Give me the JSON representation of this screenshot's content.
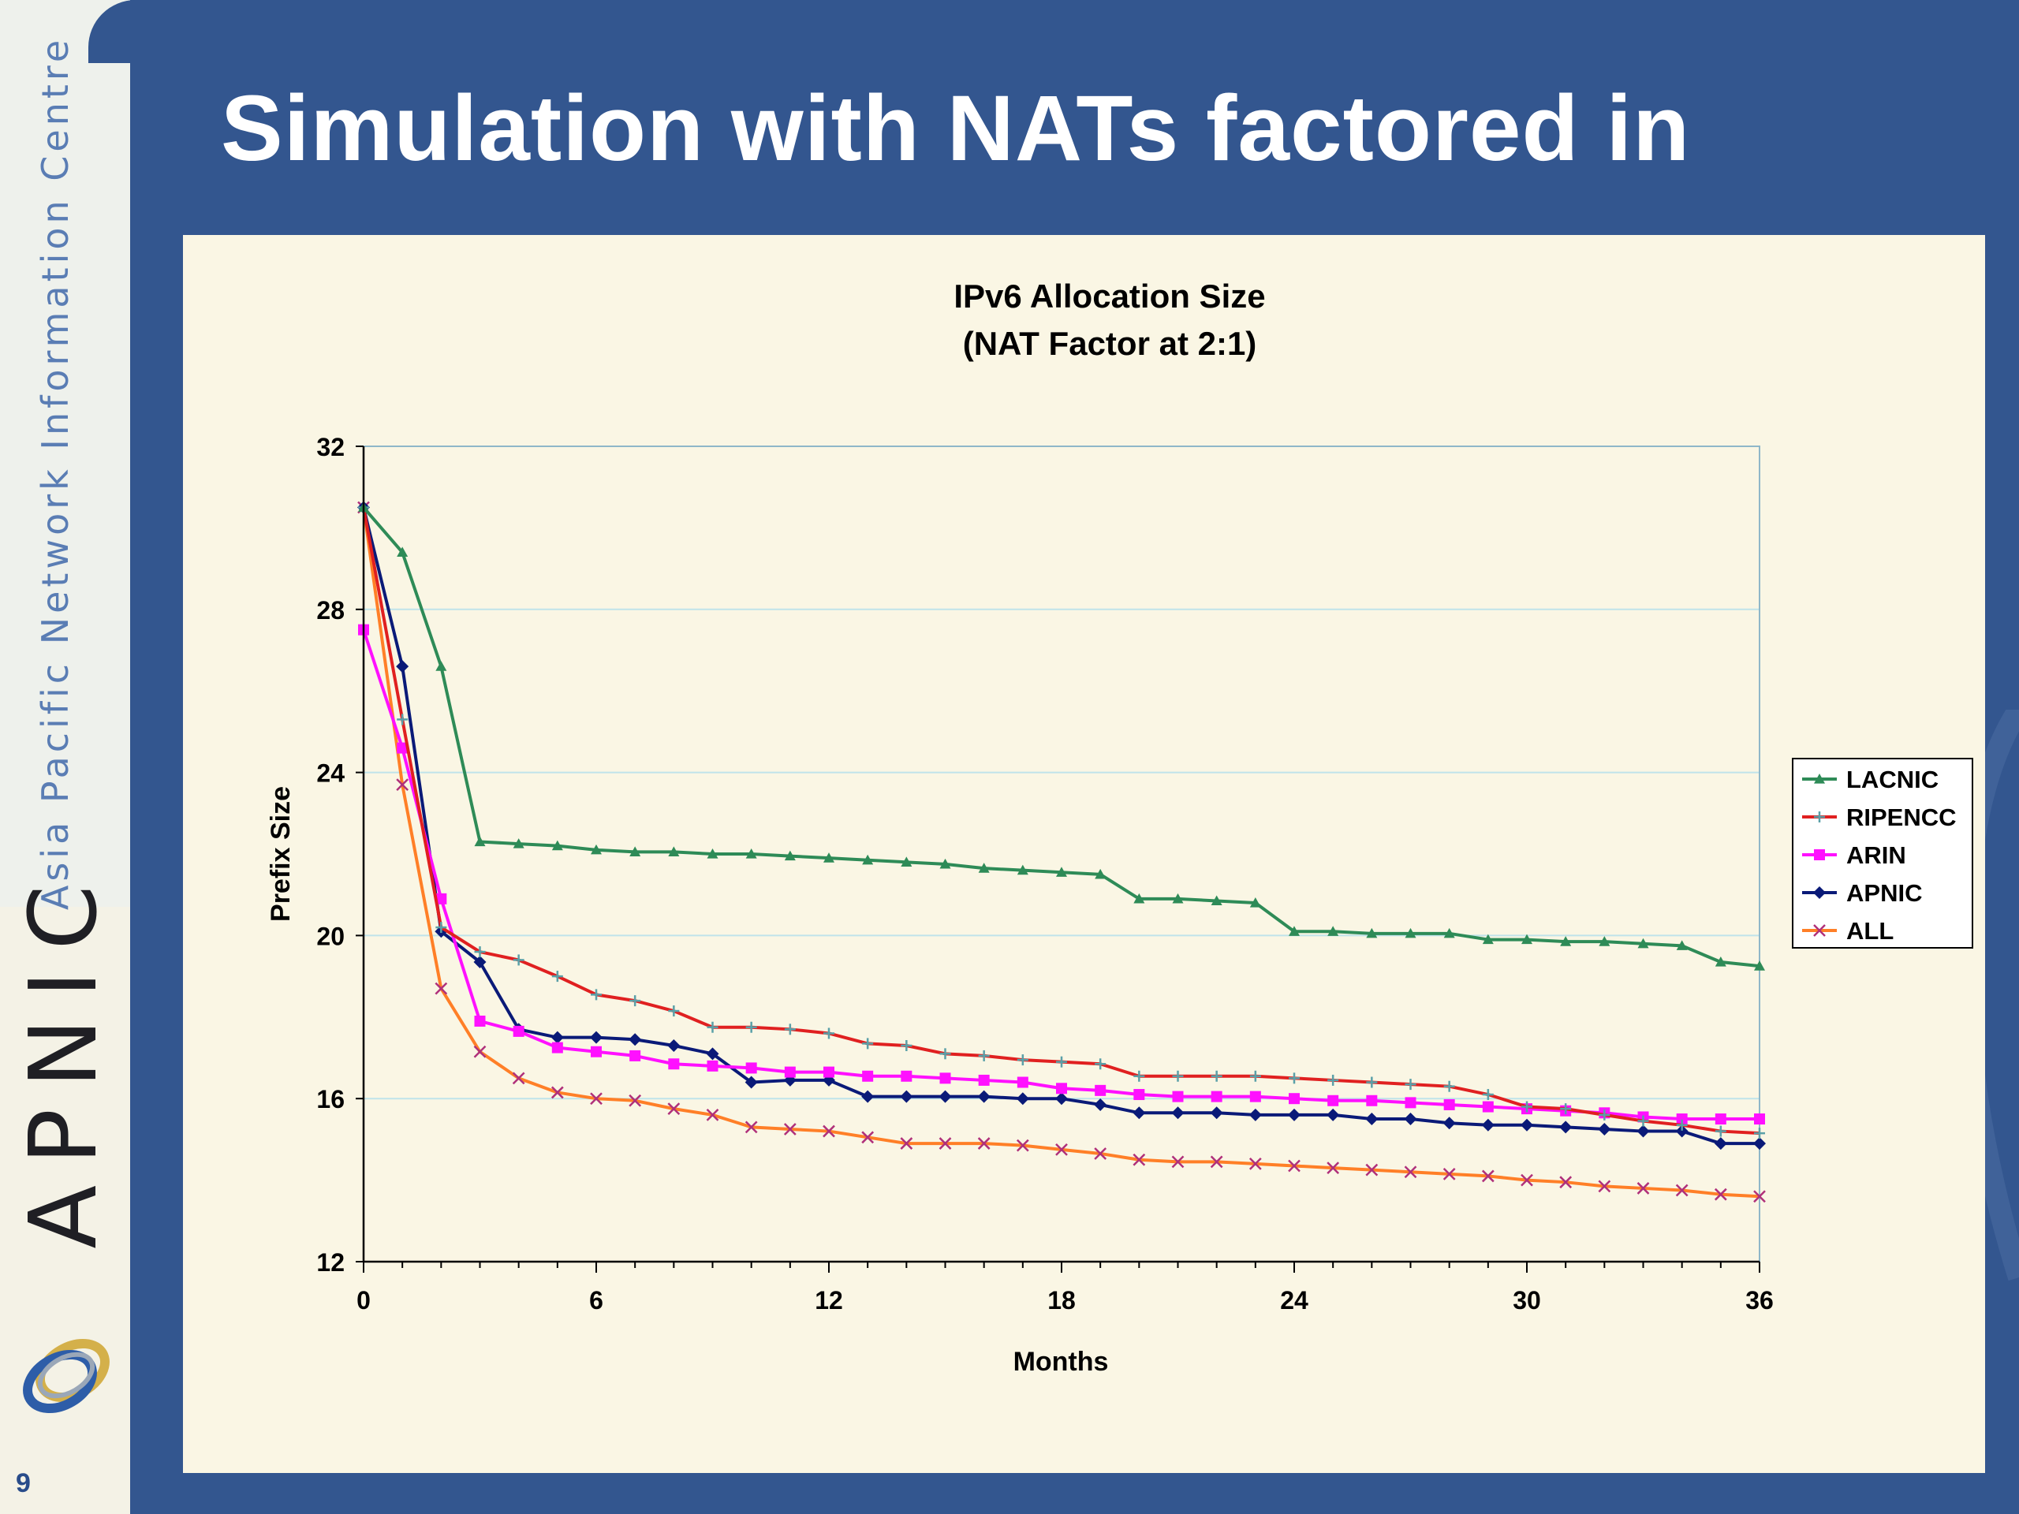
{
  "sidebar": {
    "org_name": "Asia Pacific Network Information Centre",
    "logo_text": "APNIC",
    "page_number": "9"
  },
  "slide": {
    "title": "Simulation with NATs factored in"
  },
  "chart_data": {
    "type": "line",
    "title": "IPv6 Allocation Size",
    "subtitle": "(NAT Factor at 2:1)",
    "xlabel": "Months",
    "ylabel": "Prefix Size",
    "xlim": [
      0,
      36
    ],
    "ylim": [
      12,
      32
    ],
    "xticks": [
      0,
      6,
      12,
      18,
      24,
      30,
      36
    ],
    "yticks": [
      12,
      16,
      20,
      24,
      28,
      32
    ],
    "grid": "horizontal",
    "legend_position": "right",
    "x": [
      0,
      1,
      2,
      3,
      4,
      5,
      6,
      7,
      8,
      9,
      10,
      11,
      12,
      13,
      14,
      15,
      16,
      17,
      18,
      19,
      20,
      21,
      22,
      23,
      24,
      25,
      26,
      27,
      28,
      29,
      30,
      31,
      32,
      33,
      34,
      35,
      36
    ],
    "series": [
      {
        "name": "LACNIC",
        "color": "#2e8b57",
        "marker": "triangle",
        "values": [
          30.5,
          29.4,
          26.6,
          22.3,
          22.25,
          22.2,
          22.1,
          22.05,
          22.05,
          22.0,
          22.0,
          21.95,
          21.9,
          21.85,
          21.8,
          21.75,
          21.65,
          21.6,
          21.55,
          21.5,
          20.9,
          20.9,
          20.85,
          20.8,
          20.1,
          20.1,
          20.05,
          20.05,
          20.05,
          19.9,
          19.9,
          19.85,
          19.85,
          19.8,
          19.75,
          19.35,
          19.25
        ]
      },
      {
        "name": "RIPENCC",
        "color": "#e02020",
        "marker": "plus",
        "values": [
          30.5,
          25.3,
          20.2,
          19.6,
          19.4,
          19.0,
          18.55,
          18.4,
          18.15,
          17.75,
          17.75,
          17.7,
          17.6,
          17.35,
          17.3,
          17.1,
          17.05,
          16.95,
          16.9,
          16.85,
          16.55,
          16.55,
          16.55,
          16.55,
          16.5,
          16.45,
          16.4,
          16.35,
          16.3,
          16.1,
          15.8,
          15.75,
          15.6,
          15.45,
          15.35,
          15.2,
          15.15
        ]
      },
      {
        "name": "ARIN",
        "color": "#ff10ff",
        "marker": "square",
        "values": [
          27.5,
          24.6,
          20.9,
          17.9,
          17.65,
          17.25,
          17.15,
          17.05,
          16.85,
          16.8,
          16.75,
          16.65,
          16.65,
          16.55,
          16.55,
          16.5,
          16.45,
          16.4,
          16.25,
          16.2,
          16.1,
          16.05,
          16.05,
          16.05,
          16.0,
          15.95,
          15.95,
          15.9,
          15.85,
          15.8,
          15.75,
          15.7,
          15.65,
          15.55,
          15.5,
          15.5,
          15.5
        ]
      },
      {
        "name": "APNIC",
        "color": "#0a1a78",
        "marker": "diamond",
        "values": [
          30.5,
          26.6,
          20.1,
          19.35,
          17.7,
          17.5,
          17.5,
          17.45,
          17.3,
          17.1,
          16.4,
          16.45,
          16.45,
          16.05,
          16.05,
          16.05,
          16.05,
          16.0,
          16.0,
          15.85,
          15.65,
          15.65,
          15.65,
          15.6,
          15.6,
          15.6,
          15.5,
          15.5,
          15.4,
          15.35,
          15.35,
          15.3,
          15.25,
          15.2,
          15.2,
          14.9,
          14.9
        ]
      },
      {
        "name": "ALL",
        "color": "#ff7f27",
        "marker": "cross",
        "values": [
          30.5,
          23.7,
          18.7,
          17.15,
          16.5,
          16.15,
          16.0,
          15.95,
          15.75,
          15.6,
          15.3,
          15.25,
          15.2,
          15.05,
          14.9,
          14.9,
          14.9,
          14.85,
          14.75,
          14.65,
          14.5,
          14.45,
          14.45,
          14.4,
          14.35,
          14.3,
          14.25,
          14.2,
          14.15,
          14.1,
          14.0,
          13.95,
          13.85,
          13.8,
          13.75,
          13.65,
          13.6
        ]
      }
    ]
  }
}
